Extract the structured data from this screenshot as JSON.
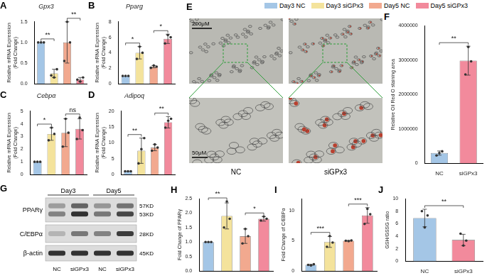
{
  "legend": {
    "items": [
      {
        "name": "Day3 NC",
        "color": "#a4c6e6"
      },
      {
        "name": "Day3 siGPx3",
        "color": "#f4e39c"
      },
      {
        "name": "Day5 NC",
        "color": "#f2a98f"
      },
      {
        "name": "Day5 siGPx3",
        "color": "#f28a9c"
      }
    ]
  },
  "chart_data": [
    {
      "panel": "A",
      "type": "bar",
      "title": "Gpx3",
      "y_label": [
        "Relative mRNA Expression",
        "(Fold Change)"
      ],
      "categories": [
        null,
        null,
        null,
        null
      ],
      "values": [
        1.0,
        0.25,
        1.0,
        0.1
      ],
      "error": [
        0,
        0.1,
        0.5,
        0.05
      ],
      "points": [
        [
          1.0,
          1.0,
          1.0
        ],
        [
          0.2,
          0.15,
          0.35
        ],
        [
          0.55,
          1.5,
          1.0
        ],
        [
          0.1,
          0.05,
          0.15
        ]
      ],
      "colors": [
        "#a4c6e6",
        "#f4e39c",
        "#f2a98f",
        "#f28a9c"
      ],
      "ylim": [
        0,
        1.5
      ],
      "yticks": [
        {
          "value": 0,
          "label": "0.0"
        },
        {
          "value": 0.5,
          "label": "0.5"
        },
        {
          "value": 1.0,
          "label": "1.0"
        },
        {
          "value": 1.5,
          "label": "1.5"
        }
      ],
      "annotations": [
        {
          "pair": [
            0,
            1
          ],
          "text": "**"
        },
        {
          "pair": [
            2,
            3
          ],
          "text": "**"
        }
      ],
      "tick_labels": "y",
      "grid": false
    },
    {
      "panel": "B",
      "type": "bar",
      "title": "Pparg",
      "y_label": [
        "Relative mRNA Expression",
        "(Fold Change)"
      ],
      "categories": [
        null,
        null,
        null,
        null
      ],
      "values": [
        1.0,
        4.0,
        2.2,
        5.8
      ],
      "error": [
        0,
        0.8,
        0.15,
        0.6
      ],
      "points": [
        [
          1.0,
          1.0,
          1.0
        ],
        [
          3.2,
          4.8,
          4.0
        ],
        [
          2.05,
          2.35,
          2.2
        ],
        [
          5.2,
          6.3,
          6.0
        ]
      ],
      "colors": [
        "#a4c6e6",
        "#f4e39c",
        "#f2a98f",
        "#f28a9c"
      ],
      "ylim": [
        0,
        8
      ],
      "yticks": [
        0,
        2,
        4,
        6,
        8
      ],
      "annotations": [
        {
          "pair": [
            0,
            1
          ],
          "text": "*"
        },
        {
          "pair": [
            2,
            3
          ],
          "text": "*"
        }
      ],
      "tick_labels": "y",
      "grid": false
    },
    {
      "panel": "C",
      "type": "bar",
      "title": "Cebpα",
      "y_label": [
        "Relative mRNA Expression",
        "(Fold Change)"
      ],
      "categories": [
        null,
        null,
        null,
        null
      ],
      "values": [
        1.0,
        3.2,
        3.3,
        3.6
      ],
      "error": [
        0,
        0.5,
        1.1,
        0.8
      ],
      "points": [
        [
          1.0,
          1.0,
          1.0
        ],
        [
          2.7,
          3.7,
          3.2
        ],
        [
          2.2,
          4.4,
          3.3
        ],
        [
          2.8,
          4.5,
          3.5
        ]
      ],
      "colors": [
        "#a4c6e6",
        "#f4e39c",
        "#f2a98f",
        "#f28a9c"
      ],
      "ylim": [
        0,
        5
      ],
      "yticks": [
        0,
        1,
        2,
        3,
        4,
        5
      ],
      "annotations": [
        {
          "pair": [
            0,
            1
          ],
          "text": "*"
        },
        {
          "pair": [
            2,
            3
          ],
          "text": "ns"
        }
      ],
      "tick_labels": "y",
      "grid": false
    },
    {
      "panel": "D",
      "type": "bar",
      "title": "Adipoq",
      "y_label": [
        "Relative mRNA Expression",
        "(Fold Change)"
      ],
      "categories": [
        null,
        null,
        null,
        null
      ],
      "values": [
        1.0,
        7.5,
        8.5,
        16.5
      ],
      "error": [
        0,
        4.0,
        1.0,
        1.8
      ],
      "points": [
        [
          1.0,
          1.0,
          1.0
        ],
        [
          3.5,
          8.0,
          11.5
        ],
        [
          7.5,
          9.5,
          8.5
        ],
        [
          14.8,
          17.0,
          17.6
        ]
      ],
      "colors": [
        "#a4c6e6",
        "#f4e39c",
        "#f2a98f",
        "#f28a9c"
      ],
      "ylim": [
        0,
        20
      ],
      "yticks": [
        0,
        5,
        10,
        15,
        20
      ],
      "annotations": [
        {
          "pair": [
            0,
            1
          ],
          "text": "**"
        },
        {
          "pair": [
            2,
            3
          ],
          "text": "**"
        }
      ],
      "tick_labels": "y",
      "grid": false
    },
    {
      "panel": "F",
      "type": "bar",
      "y_label": "Relative Oil Red O staining area",
      "categories": [
        "NC",
        "siGPx3"
      ],
      "values": [
        300000,
        2980000
      ],
      "error": [
        60000,
        420000
      ],
      "points": [
        [
          230000,
          300000,
          350000
        ],
        [
          2580000,
          3380000,
          2960000
        ]
      ],
      "colors": [
        "#a4c6e6",
        "#f28a9c"
      ],
      "ylim": [
        0,
        4000000
      ],
      "yticks": [
        0,
        1000000,
        2000000,
        3000000,
        4000000
      ],
      "annotations": [
        {
          "pair": [
            0,
            1
          ],
          "text": "**"
        }
      ],
      "grid": false
    },
    {
      "panel": "H",
      "type": "bar",
      "y_label": "Fold Change of PPARγ",
      "categories": [
        null,
        null,
        null,
        null
      ],
      "values": [
        1.0,
        1.9,
        1.2,
        1.8
      ],
      "error": [
        0,
        0.45,
        0.25,
        0.08
      ],
      "points": [
        [
          1.0,
          1.0,
          1.0
        ],
        [
          1.5,
          2.4,
          1.8
        ],
        [
          0.95,
          1.45,
          1.2
        ],
        [
          1.74,
          1.88,
          1.8
        ]
      ],
      "colors": [
        "#a4c6e6",
        "#f4e39c",
        "#f2a98f",
        "#f28a9c"
      ],
      "ylim": [
        0,
        2.5
      ],
      "yticks": [
        {
          "value": 0,
          "label": "0.0"
        },
        {
          "value": 0.5,
          "label": "0.5"
        },
        {
          "value": 1.0,
          "label": "1.0"
        },
        {
          "value": 1.5,
          "label": "1.5"
        },
        {
          "value": 2.0,
          "label": "2.0"
        },
        {
          "value": 2.5,
          "label": "2.5"
        }
      ],
      "annotations": [
        {
          "pair": [
            0,
            1
          ],
          "text": "**"
        },
        {
          "pair": [
            2,
            3
          ],
          "text": "*"
        }
      ],
      "tick_labels": "y",
      "grid": false
    },
    {
      "panel": "I",
      "type": "bar",
      "y_label": "Fold Change of C/EBPα",
      "categories": [
        null,
        null,
        null,
        null
      ],
      "values": [
        1.0,
        4.8,
        5.0,
        9.2
      ],
      "error": [
        0.1,
        0.9,
        0.05,
        1.3
      ],
      "points": [
        [
          1.0,
          0.9,
          1.1
        ],
        [
          4.0,
          5.8,
          4.7
        ],
        [
          5.0,
          4.95,
          5.05
        ],
        [
          7.8,
          10.3,
          9.4
        ]
      ],
      "colors": [
        "#a4c6e6",
        "#f4e39c",
        "#f2a98f",
        "#f28a9c"
      ],
      "ylim": [
        0,
        12
      ],
      "yticks": [
        0,
        5,
        10
      ],
      "annotations": [
        {
          "pair": [
            0,
            1
          ],
          "text": "***"
        },
        {
          "pair": [
            2,
            3
          ],
          "text": "***"
        }
      ],
      "tick_labels": "y",
      "grid": false
    },
    {
      "panel": "J",
      "type": "bar",
      "y_label": "GSH/GSSG ratio",
      "categories": [
        "NC",
        "siGPx3"
      ],
      "values": [
        6.9,
        3.4
      ],
      "error": [
        1.4,
        0.9
      ],
      "points": [
        [
          8.0,
          5.4,
          7.3
        ],
        [
          4.4,
          2.5,
          3.3
        ]
      ],
      "colors": [
        "#a4c6e6",
        "#f28a9c"
      ],
      "ylim": [
        0,
        10
      ],
      "yticks": [
        0,
        2,
        4,
        6,
        8,
        10
      ],
      "annotations": [
        {
          "pair": [
            0,
            1
          ],
          "text": "**"
        }
      ],
      "grid": false
    }
  ],
  "image_panel": {
    "panel": "E",
    "scale_bars": [
      "200μM",
      "50μM"
    ],
    "labels": [
      "NC",
      "siGPx3"
    ]
  },
  "blot_panel": {
    "panel": "G",
    "groups": [
      "Day3",
      "Day5"
    ],
    "lanes": [
      "NC",
      "siGPx3",
      "NC",
      "siGPx3"
    ],
    "rows": [
      {
        "name": "PPARγ",
        "sizes": [
          "57KD",
          "53KD"
        ]
      },
      {
        "name": "C/EBPα",
        "sizes": [
          "28KD"
        ]
      },
      {
        "name": "β-actin",
        "sizes": [
          "45KD"
        ]
      }
    ]
  }
}
